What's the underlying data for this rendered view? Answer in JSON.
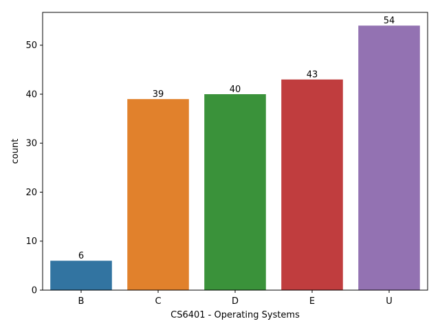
{
  "chart_data": {
    "type": "bar",
    "title": "",
    "xlabel": "CS6401 - Operating Systems",
    "ylabel": "count",
    "categories": [
      "B",
      "C",
      "D",
      "E",
      "U"
    ],
    "values": [
      6,
      39,
      40,
      43,
      54
    ],
    "data_labels": [
      "6",
      "39",
      "40",
      "43",
      "54"
    ],
    "colors": [
      "#3274a1",
      "#e1812c",
      "#3a923a",
      "#c03d3e",
      "#9372b2"
    ],
    "ylim": [
      0,
      56.7
    ],
    "yticks": [
      0,
      10,
      20,
      30,
      40,
      50
    ],
    "grid": false,
    "legend": "none"
  }
}
